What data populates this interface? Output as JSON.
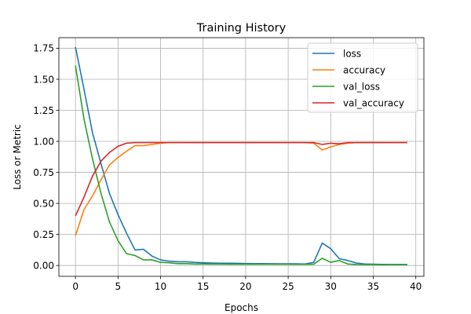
{
  "chart_data": {
    "type": "line",
    "title": "Training History",
    "xlabel": "Epochs",
    "ylabel": "Loss or Metric",
    "xlim": [
      -1.95,
      40.95
    ],
    "ylim": [
      -0.0875,
      1.835
    ],
    "xticks": [
      0,
      5,
      10,
      15,
      20,
      25,
      30,
      35,
      40
    ],
    "xtick_labels": [
      "0",
      "5",
      "10",
      "15",
      "20",
      "25",
      "30",
      "35",
      "40"
    ],
    "yticks": [
      0.0,
      0.25,
      0.5,
      0.75,
      1.0,
      1.25,
      1.5,
      1.75
    ],
    "ytick_labels": [
      "0.00",
      "0.25",
      "0.50",
      "0.75",
      "1.00",
      "1.25",
      "1.50",
      "1.75"
    ],
    "grid": true,
    "legend_position": "top-right",
    "x": [
      0,
      1,
      2,
      3,
      4,
      5,
      6,
      7,
      8,
      9,
      10,
      11,
      12,
      13,
      14,
      15,
      16,
      17,
      18,
      19,
      20,
      21,
      22,
      23,
      24,
      25,
      26,
      27,
      28,
      29,
      30,
      31,
      32,
      33,
      34,
      35,
      36,
      37,
      38,
      39
    ],
    "series": [
      {
        "name": "loss",
        "color": "#1f77b4",
        "values": [
          1.76,
          1.42,
          1.07,
          0.82,
          0.58,
          0.41,
          0.26,
          0.125,
          0.13,
          0.075,
          0.045,
          0.035,
          0.03,
          0.03,
          0.025,
          0.022,
          0.02,
          0.018,
          0.018,
          0.017,
          0.016,
          0.015,
          0.015,
          0.014,
          0.013,
          0.013,
          0.013,
          0.012,
          0.025,
          0.18,
          0.135,
          0.055,
          0.04,
          0.02,
          0.012,
          0.01,
          0.009,
          0.008,
          0.008,
          0.008
        ]
      },
      {
        "name": "accuracy",
        "color": "#ff7f0e",
        "values": [
          0.24,
          0.45,
          0.56,
          0.69,
          0.81,
          0.87,
          0.92,
          0.965,
          0.965,
          0.975,
          0.985,
          0.99,
          0.99,
          0.99,
          0.99,
          0.99,
          0.99,
          0.99,
          0.99,
          0.99,
          0.99,
          0.99,
          0.99,
          0.99,
          0.99,
          0.99,
          0.99,
          0.99,
          0.985,
          0.93,
          0.955,
          0.975,
          0.985,
          0.99,
          0.99,
          0.99,
          0.99,
          0.99,
          0.99,
          0.99
        ]
      },
      {
        "name": "val_loss",
        "color": "#2ca02c",
        "values": [
          1.61,
          1.18,
          0.86,
          0.58,
          0.35,
          0.2,
          0.095,
          0.08,
          0.045,
          0.045,
          0.025,
          0.022,
          0.015,
          0.015,
          0.012,
          0.012,
          0.011,
          0.011,
          0.01,
          0.01,
          0.01,
          0.01,
          0.01,
          0.01,
          0.01,
          0.01,
          0.009,
          0.009,
          0.01,
          0.058,
          0.025,
          0.04,
          0.012,
          0.008,
          0.007,
          0.007,
          0.006,
          0.006,
          0.006,
          0.006
        ]
      },
      {
        "name": "val_accuracy",
        "color": "#d62728",
        "values": [
          0.4,
          0.55,
          0.72,
          0.84,
          0.91,
          0.96,
          0.985,
          0.99,
          0.99,
          0.99,
          0.99,
          0.99,
          0.99,
          0.99,
          0.99,
          0.99,
          0.99,
          0.99,
          0.99,
          0.99,
          0.99,
          0.99,
          0.99,
          0.99,
          0.99,
          0.99,
          0.99,
          0.99,
          0.99,
          0.975,
          0.985,
          0.98,
          0.99,
          0.99,
          0.99,
          0.99,
          0.99,
          0.99,
          0.99,
          0.99
        ]
      }
    ]
  }
}
